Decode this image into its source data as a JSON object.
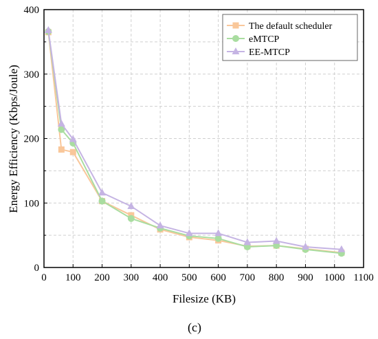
{
  "chart_data": {
    "type": "line",
    "xlabel": "Filesize (KB)",
    "ylabel": "Energy Efficiency (Kbps/Joule)",
    "panel_label": "(c)",
    "xlim": [
      0,
      1100
    ],
    "ylim": [
      0,
      400
    ],
    "x_ticks": [
      0,
      100,
      200,
      300,
      400,
      500,
      600,
      700,
      800,
      900,
      1000,
      1100
    ],
    "y_ticks": [
      0,
      100,
      200,
      300,
      400
    ],
    "grid": true,
    "legend_position": "top-right",
    "series": [
      {
        "name": "The default scheduler",
        "color": "#F9C79A",
        "marker": "square",
        "x": [
          15,
          60,
          100,
          200,
          300,
          400,
          500,
          600,
          700,
          800,
          900,
          1024
        ],
        "y": [
          365,
          183,
          179,
          103,
          81,
          59,
          47,
          42,
          33,
          34,
          29,
          23
        ]
      },
      {
        "name": "eMTCP",
        "color": "#A9DDA0",
        "marker": "circle",
        "x": [
          15,
          60,
          100,
          200,
          300,
          400,
          500,
          600,
          700,
          800,
          900,
          1024
        ],
        "y": [
          366,
          214,
          193,
          103,
          76,
          61,
          49,
          45,
          32,
          34,
          28,
          22
        ]
      },
      {
        "name": "EE-MTCP",
        "color": "#C5B4E3",
        "marker": "triangle",
        "x": [
          15,
          60,
          100,
          200,
          300,
          400,
          500,
          600,
          700,
          800,
          900,
          1024
        ],
        "y": [
          368,
          223,
          199,
          116,
          95,
          65,
          53,
          53,
          39,
          41,
          32,
          28
        ]
      }
    ]
  }
}
